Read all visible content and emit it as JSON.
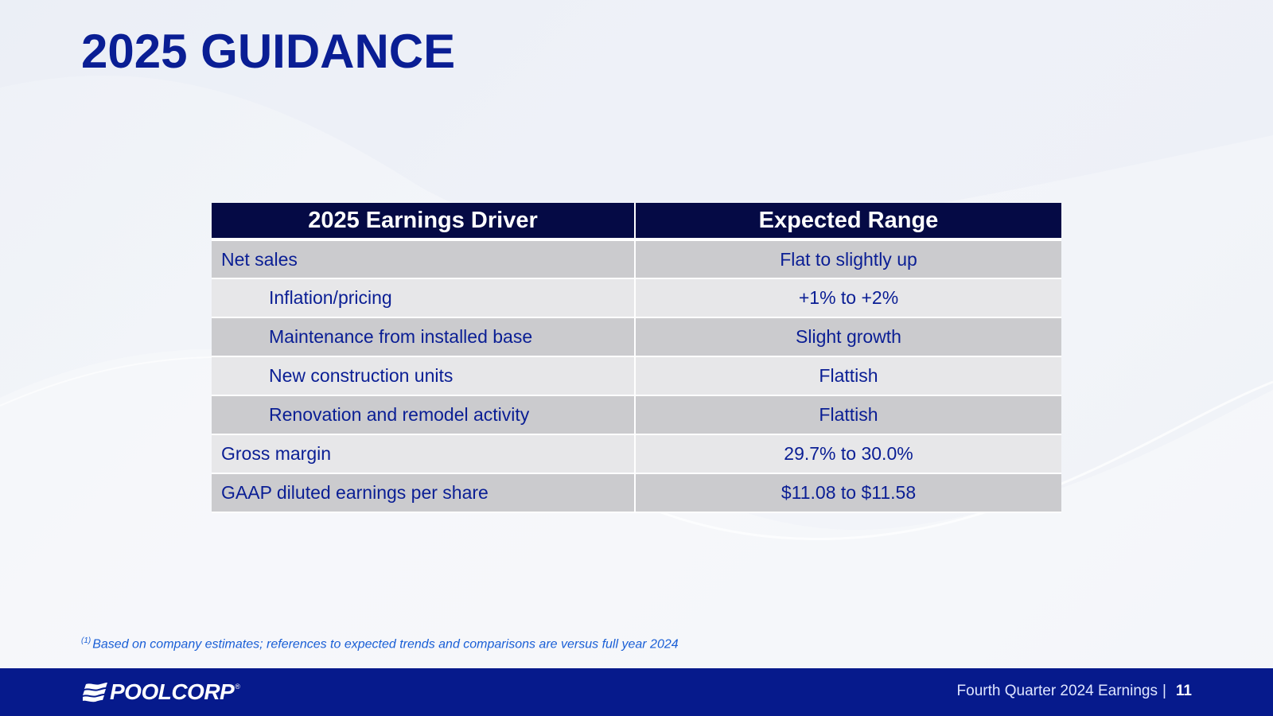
{
  "slide": {
    "title": "2025 GUIDANCE"
  },
  "table": {
    "headers": [
      "2025 Earnings Driver",
      "Expected Range"
    ],
    "rows": [
      {
        "driver": "Net sales",
        "range": "Flat to slightly up"
      },
      {
        "driver": "Inflation/pricing",
        "range": "+1% to +2%"
      },
      {
        "driver": "Maintenance from installed base",
        "range": "Slight growth"
      },
      {
        "driver": "New construction units",
        "range": "Flattish"
      },
      {
        "driver": "Renovation and remodel activity",
        "range": "Flattish"
      },
      {
        "driver": "Gross margin",
        "range": "29.7% to 30.0%"
      },
      {
        "driver": "GAAP diluted earnings per share",
        "range": "$11.08 to $11.58"
      }
    ]
  },
  "footnote": {
    "marker": "(1)",
    "text": "Based on company estimates; references to expected trends and comparisons are versus full year 2024"
  },
  "footer": {
    "logo_text": "POOLCORP",
    "logo_reg": "®",
    "presentation_label": "Fourth Quarter 2024 Earnings",
    "separator": "|",
    "page_number": "11"
  },
  "colors": {
    "title": "#0a1e94",
    "header_bg": "#050a45",
    "row_dark": "#cbcbce",
    "row_light": "#e7e7e9",
    "footer_bg": "#061a8c",
    "footnote": "#1a5fd6"
  },
  "icons": {
    "logo_mark": "poolcorp-waves-icon"
  }
}
